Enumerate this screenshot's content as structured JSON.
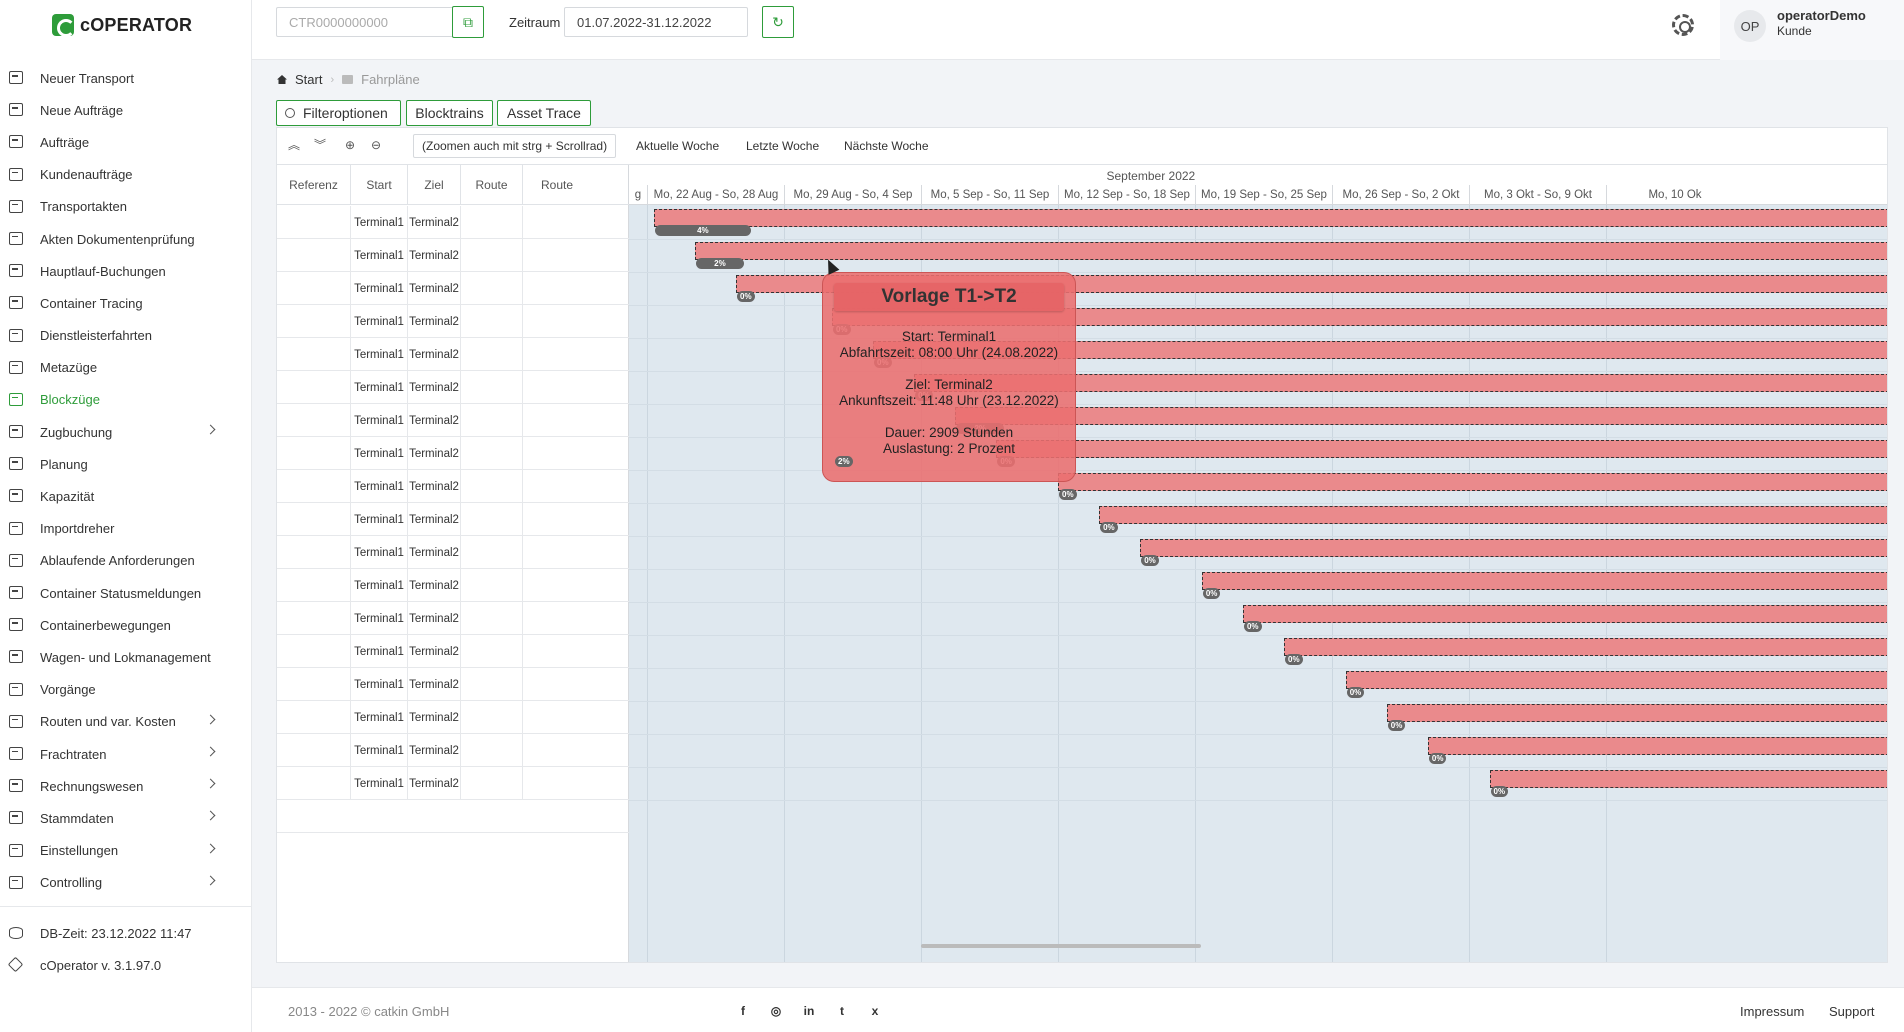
{
  "app": {
    "name": "cOPERATOR"
  },
  "sidebar": {
    "items": [
      {
        "label": "Neuer Transport",
        "icon": "truck-icon",
        "chevron": false
      },
      {
        "label": "Neue Aufträge",
        "icon": "truck-plus-icon",
        "chevron": false
      },
      {
        "label": "Aufträge",
        "icon": "document-icon",
        "chevron": false
      },
      {
        "label": "Kundenaufträge",
        "icon": "container-icon",
        "chevron": false
      },
      {
        "label": "Transportakten",
        "icon": "container-icon",
        "chevron": false
      },
      {
        "label": "Akten Dokumentenprüfung",
        "icon": "container-check-icon",
        "chevron": false
      },
      {
        "label": "Hauptlauf-Buchungen",
        "icon": "cube-icon",
        "chevron": false
      },
      {
        "label": "Container Tracing",
        "icon": "cube-icon",
        "chevron": false
      },
      {
        "label": "Dienstleisterfahrten",
        "icon": "container-icon",
        "chevron": false
      },
      {
        "label": "Metazüge",
        "icon": "container-icon",
        "chevron": false
      },
      {
        "label": "Blockzüge",
        "icon": "calendar-grid-icon",
        "chevron": false,
        "active": true
      },
      {
        "label": "Zugbuchung",
        "icon": "train-icon",
        "chevron": true
      },
      {
        "label": "Planung",
        "icon": "calendar-icon",
        "chevron": false
      },
      {
        "label": "Kapazität",
        "icon": "pie-chart-icon",
        "chevron": false
      },
      {
        "label": "Importdreher",
        "icon": "swap-icon",
        "chevron": false
      },
      {
        "label": "Ablaufende Anforderungen",
        "icon": "list-icon",
        "chevron": false
      },
      {
        "label": "Container Statusmeldungen",
        "icon": "status-icon",
        "chevron": false
      },
      {
        "label": "Containerbewegungen",
        "icon": "status-icon",
        "chevron": false
      },
      {
        "label": "Wagen- und Lokmanagement",
        "icon": "wagon-icon",
        "chevron": false
      },
      {
        "label": "Vorgänge",
        "icon": "mail-icon",
        "chevron": false
      },
      {
        "label": "Routen und var. Kosten",
        "icon": "route-icon",
        "chevron": true
      },
      {
        "label": "Frachtraten",
        "icon": "money-icon",
        "chevron": true
      },
      {
        "label": "Rechnungswesen",
        "icon": "table-icon",
        "chevron": true
      },
      {
        "label": "Stammdaten",
        "icon": "database-icon",
        "chevron": true
      },
      {
        "label": "Einstellungen",
        "icon": "gear-icon",
        "chevron": true
      },
      {
        "label": "Controlling",
        "icon": "line-chart-icon",
        "chevron": true
      }
    ],
    "db_time": "DB-Zeit: 23.12.2022 11:47",
    "version": "cOperator v. 3.1.97.0"
  },
  "header": {
    "ctr_placeholder": "CTR0000000000",
    "zeitraum_label": "Zeitraum",
    "zeitraum_value": "01.07.2022-31.12.2022",
    "user_initials": "OP",
    "user_name": "operatorDemo",
    "user_role": "Kunde"
  },
  "breadcrumb": {
    "start": "Start",
    "current": "Fahrpläne"
  },
  "toolbar": {
    "filter_label": "Filteroptionen",
    "blocktrains_label": "Blocktrains",
    "asset_trace_label": "Asset Trace"
  },
  "gantt": {
    "zoom_hint": "(Zoomen auch mit strg + Scrollrad)",
    "week_links": [
      "Aktuelle Woche",
      "Letzte Woche",
      "Nächste Woche"
    ],
    "columns": [
      "Referenz",
      "Start",
      "Ziel",
      "Route",
      "Route"
    ],
    "month_label": "September 2022",
    "week_prev_label": "g",
    "weeks": [
      "Mo, 22 Aug - So, 28 Aug",
      "Mo, 29 Aug - So, 4 Sep",
      "Mo, 5 Sep - So, 11 Sep",
      "Mo, 12 Sep - So, 18 Sep",
      "Mo, 19 Sep - So, 25 Sep",
      "Mo, 26 Sep - So, 2 Okt",
      "Mo, 3 Okt - So, 9 Okt",
      "Mo, 10 Ok"
    ],
    "rows": [
      {
        "referenz": "",
        "start": "Terminal1",
        "ziel": "Terminal2",
        "route": "",
        "progress": "4%",
        "progress_value": 4,
        "start_day": 0.05
      },
      {
        "referenz": "",
        "start": "Terminal1",
        "ziel": "Terminal2",
        "route": "",
        "progress": "2%",
        "progress_value": 2,
        "start_day": 0.35
      },
      {
        "referenz": "",
        "start": "Terminal1",
        "ziel": "Terminal2",
        "route": "",
        "progress": "0%",
        "progress_value": 0,
        "start_day": 0.65
      },
      {
        "referenz": "",
        "start": "Terminal1",
        "ziel": "Terminal2",
        "route": "",
        "progress": "0%",
        "progress_value": 0,
        "start_day": 1.35
      },
      {
        "referenz": "",
        "start": "Terminal1",
        "ziel": "Terminal2",
        "route": "",
        "progress": "0%",
        "progress_value": 0,
        "start_day": 1.65
      },
      {
        "referenz": "",
        "start": "Terminal1",
        "ziel": "Terminal2",
        "route": "",
        "progress": "0%",
        "progress_value": 0,
        "start_day": 1.95
      },
      {
        "referenz": "",
        "start": "Terminal1",
        "ziel": "Terminal2",
        "route": "",
        "progress": "2%",
        "progress_value": 2,
        "start_day": 2.25
      },
      {
        "referenz": "",
        "start": "Terminal1",
        "ziel": "Terminal2",
        "route": "",
        "progress": "0%",
        "progress_value": 0,
        "start_day": 2.55
      },
      {
        "referenz": "",
        "start": "Terminal1",
        "ziel": "Terminal2",
        "route": "",
        "progress": "0%",
        "progress_value": 0,
        "start_day": 3.0
      },
      {
        "referenz": "",
        "start": "Terminal1",
        "ziel": "Terminal2",
        "route": "",
        "progress": "0%",
        "progress_value": 0,
        "start_day": 3.3
      },
      {
        "referenz": "",
        "start": "Terminal1",
        "ziel": "Terminal2",
        "route": "",
        "progress": "0%",
        "progress_value": 0,
        "start_day": 3.6
      },
      {
        "referenz": "",
        "start": "Terminal1",
        "ziel": "Terminal2",
        "route": "",
        "progress": "0%",
        "progress_value": 0,
        "start_day": 4.05
      },
      {
        "referenz": "",
        "start": "Terminal1",
        "ziel": "Terminal2",
        "route": "",
        "progress": "0%",
        "progress_value": 0,
        "start_day": 4.35
      },
      {
        "referenz": "",
        "start": "Terminal1",
        "ziel": "Terminal2",
        "route": "",
        "progress": "0%",
        "progress_value": 0,
        "start_day": 4.65
      },
      {
        "referenz": "",
        "start": "Terminal1",
        "ziel": "Terminal2",
        "route": "",
        "progress": "0%",
        "progress_value": 0,
        "start_day": 5.1
      },
      {
        "referenz": "",
        "start": "Terminal1",
        "ziel": "Terminal2",
        "route": "",
        "progress": "0%",
        "progress_value": 0,
        "start_day": 5.4
      },
      {
        "referenz": "",
        "start": "Terminal1",
        "ziel": "Terminal2",
        "route": "",
        "progress": "0%",
        "progress_value": 0,
        "start_day": 5.7
      },
      {
        "referenz": "",
        "start": "Terminal1",
        "ziel": "Terminal2",
        "route": "",
        "progress": "0%",
        "progress_value": 0,
        "start_day": 6.15
      }
    ]
  },
  "tooltip": {
    "title": "Vorlage T1->T2",
    "start": "Start: Terminal1",
    "departure": "Abfahrtszeit: 08:00 Uhr (24.08.2022)",
    "target": "Ziel: Terminal2",
    "arrival": "Ankunftszeit: 11:48 Uhr (23.12.2022)",
    "duration": "Dauer: 2909 Stunden",
    "load": "Auslastung: 2 Prozent",
    "badge": "2%"
  },
  "footer": {
    "copyright": "2013 - 2022 © catkin GmbH",
    "social": [
      "facebook-icon",
      "instagram-icon",
      "linkedin-icon",
      "twitter-icon",
      "xing-icon"
    ],
    "social_glyphs": [
      "f",
      "◎",
      "in",
      "t",
      "x"
    ],
    "impressum": "Impressum",
    "support": "Support"
  },
  "colors": {
    "accent": "#2e9c3a",
    "bar": "#ea8a8c",
    "timeline_bg": "#dfe8ef"
  }
}
